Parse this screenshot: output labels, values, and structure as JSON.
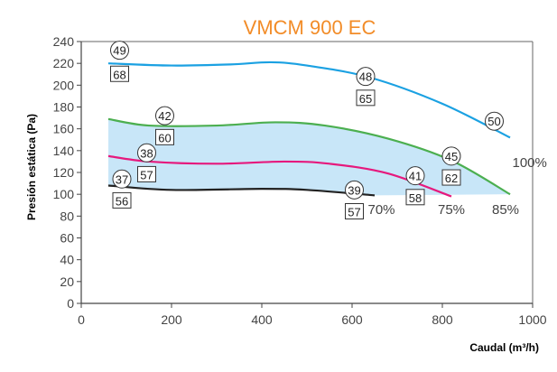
{
  "chart_data": {
    "type": "line",
    "title": "VMCM 900 EC",
    "xlabel": "Caudal (m³/h)",
    "ylabel": "Presión estática (Pa)",
    "xlim": [
      0,
      1000
    ],
    "ylim": [
      0,
      240
    ],
    "x_ticks": [
      "0",
      "200",
      "400",
      "600",
      "800",
      "1000"
    ],
    "y_ticks": [
      "0",
      "20",
      "40",
      "60",
      "80",
      "100",
      "120",
      "140",
      "160",
      "180",
      "200",
      "220",
      "240"
    ],
    "grid": false,
    "shaded_region": {
      "color": "#c8e6f8",
      "between": [
        "85%",
        "70%"
      ]
    },
    "series": [
      {
        "name": "100%",
        "color": "#1ba1e2",
        "x": [
          60,
          200,
          330,
          420,
          500,
          640,
          800,
          950
        ],
        "y": [
          220,
          218,
          219,
          221,
          218,
          207,
          183,
          152
        ]
      },
      {
        "name": "85%",
        "color": "#4caf50",
        "x": [
          60,
          150,
          300,
          430,
          540,
          680,
          820,
          950
        ],
        "y": [
          169,
          163,
          163,
          166,
          163,
          151,
          131,
          100
        ]
      },
      {
        "name": "75%",
        "color": "#e6197d",
        "x": [
          60,
          150,
          300,
          450,
          550,
          680,
          820
        ],
        "y": [
          135,
          130,
          128,
          130,
          128,
          119,
          98
        ]
      },
      {
        "name": "70%",
        "color": "#222222",
        "x": [
          60,
          200,
          400,
          500,
          650
        ],
        "y": [
          108,
          104,
          105,
          104,
          99
        ]
      }
    ],
    "markers": [
      {
        "circle": "49",
        "box": "68"
      },
      {
        "circle": "48",
        "box": "65"
      },
      {
        "circle": "50",
        "box": ""
      },
      {
        "circle": "42",
        "box": "60"
      },
      {
        "circle": "45",
        "box": "62"
      },
      {
        "circle": "38",
        "box": "57"
      },
      {
        "circle": "41",
        "box": "58"
      },
      {
        "circle": "37",
        "box": "56"
      },
      {
        "circle": "39",
        "box": "57"
      }
    ]
  }
}
